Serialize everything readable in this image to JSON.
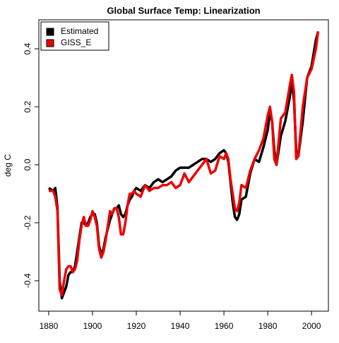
{
  "chart_data": {
    "type": "line",
    "title": "Global Surface Temp: Linearization",
    "y_label": "deg C",
    "x": [
      1880,
      1882,
      1883,
      1884,
      1885,
      1886,
      1887,
      1888,
      1889,
      1890,
      1891,
      1892,
      1893,
      1894,
      1895,
      1896,
      1897,
      1898,
      1899,
      1900,
      1901,
      1902,
      1903,
      1904,
      1905,
      1906,
      1907,
      1908,
      1909,
      1910,
      1911,
      1912,
      1913,
      1914,
      1915,
      1916,
      1917,
      1918,
      1919,
      1920,
      1922,
      1924,
      1926,
      1928,
      1930,
      1932,
      1934,
      1936,
      1938,
      1940,
      1942,
      1944,
      1946,
      1948,
      1950,
      1952,
      1954,
      1956,
      1958,
      1960,
      1961,
      1962,
      1963,
      1964,
      1965,
      1966,
      1967,
      1968,
      1970,
      1972,
      1974,
      1976,
      1978,
      1980,
      1981,
      1982,
      1983,
      1984,
      1985,
      1986,
      1988,
      1990,
      1991,
      1992,
      1993,
      1994,
      1996,
      1998,
      2000,
      2002,
      2003
    ],
    "series": [
      {
        "name": "Estimated",
        "color": "#000000",
        "values": [
          -0.08,
          -0.09,
          -0.08,
          -0.15,
          -0.4,
          -0.46,
          -0.44,
          -0.42,
          -0.38,
          -0.37,
          -0.37,
          -0.35,
          -0.3,
          -0.25,
          -0.2,
          -0.2,
          -0.21,
          -0.2,
          -0.18,
          -0.17,
          -0.17,
          -0.2,
          -0.28,
          -0.31,
          -0.29,
          -0.25,
          -0.22,
          -0.19,
          -0.17,
          -0.15,
          -0.15,
          -0.14,
          -0.17,
          -0.18,
          -0.17,
          -0.14,
          -0.12,
          -0.11,
          -0.09,
          -0.08,
          -0.09,
          -0.07,
          -0.08,
          -0.06,
          -0.05,
          -0.06,
          -0.05,
          -0.04,
          -0.02,
          -0.01,
          -0.01,
          -0.01,
          0.0,
          0.01,
          0.02,
          0.02,
          0.01,
          0.02,
          0.04,
          0.05,
          0.04,
          0.01,
          -0.06,
          -0.13,
          -0.18,
          -0.19,
          -0.17,
          -0.12,
          -0.11,
          -0.03,
          0.02,
          0.01,
          0.06,
          0.12,
          0.18,
          0.15,
          0.05,
          0.0,
          0.05,
          0.1,
          0.15,
          0.23,
          0.29,
          0.22,
          0.05,
          0.03,
          0.15,
          0.3,
          0.34,
          0.43,
          0.46
        ]
      },
      {
        "name": "GISS_E",
        "color": "#ee0000",
        "values": [
          -0.09,
          -0.09,
          -0.11,
          -0.16,
          -0.43,
          -0.45,
          -0.4,
          -0.36,
          -0.35,
          -0.35,
          -0.37,
          -0.36,
          -0.33,
          -0.26,
          -0.21,
          -0.18,
          -0.21,
          -0.21,
          -0.19,
          -0.16,
          -0.18,
          -0.21,
          -0.29,
          -0.32,
          -0.3,
          -0.26,
          -0.21,
          -0.16,
          -0.17,
          -0.15,
          -0.15,
          -0.18,
          -0.24,
          -0.24,
          -0.2,
          -0.14,
          -0.1,
          -0.1,
          -0.09,
          -0.1,
          -0.11,
          -0.07,
          -0.09,
          -0.08,
          -0.08,
          -0.07,
          -0.07,
          -0.06,
          -0.08,
          -0.07,
          -0.03,
          -0.06,
          -0.04,
          -0.02,
          0.0,
          0.02,
          -0.03,
          -0.02,
          0.03,
          0.02,
          0.04,
          0.02,
          -0.05,
          -0.1,
          -0.15,
          -0.16,
          -0.13,
          -0.07,
          -0.08,
          -0.02,
          0.02,
          0.05,
          0.09,
          0.17,
          0.2,
          0.15,
          0.02,
          0.0,
          0.08,
          0.16,
          0.18,
          0.27,
          0.31,
          0.25,
          0.02,
          0.03,
          0.2,
          0.3,
          0.33,
          0.4,
          0.46
        ]
      }
    ],
    "xlim": [
      1875.5,
      2007.7
    ],
    "xticks": [
      1880,
      1900,
      1920,
      1940,
      1960,
      1980,
      2000
    ],
    "ylim": [
      -0.505,
      0.5
    ],
    "yticks": [
      -0.4,
      -0.2,
      {
        "value": 0,
        "label": "0.0"
      },
      0.2,
      0.4
    ],
    "legend": "top-left"
  }
}
